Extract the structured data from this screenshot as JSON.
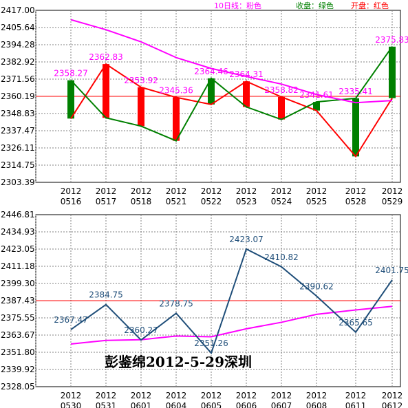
{
  "colors": {
    "ma_line": "#ff00ff",
    "close_line": "#008000",
    "open_line": "#ff0000",
    "up_bar": "#008000",
    "down_bar": "#ff0000",
    "grid": "#808080",
    "ref_line": "#ff0000",
    "top_label": "#ff00ff",
    "bottom_line": "#1f4e79",
    "bottom_label": "#1f4e79",
    "axis_text": "#000000"
  },
  "legend": [
    {
      "text": "10日线：粉色",
      "color": "#ff00ff"
    },
    {
      "text": "收盘：绿色",
      "color": "#008000"
    },
    {
      "text": "开盘：红色",
      "color": "#ff0000"
    }
  ],
  "watermark": "彭鉴绵2012-5-29深圳",
  "chart_data": [
    {
      "type": "candlestick",
      "panel": "top",
      "y_ticks": [
        "2417.00",
        "2405.64",
        "2394.28",
        "2382.92",
        "2371.56",
        "2360.19",
        "2348.83",
        "2337.47",
        "2326.11",
        "2314.75",
        "2303.39"
      ],
      "ylim": [
        2303.39,
        2417.0
      ],
      "x_labels": [
        {
          "year": "2012",
          "md": "0516"
        },
        {
          "year": "2012",
          "md": "0517"
        },
        {
          "year": "2012",
          "md": "0518"
        },
        {
          "year": "2012",
          "md": "0521"
        },
        {
          "year": "2012",
          "md": "0522"
        },
        {
          "year": "2012",
          "md": "0523"
        },
        {
          "year": "2012",
          "md": "0524"
        },
        {
          "year": "2012",
          "md": "0525"
        },
        {
          "year": "2012",
          "md": "0528"
        },
        {
          "year": "2012",
          "md": "0529"
        }
      ],
      "reference_line": 2360.19,
      "open": [
        2345.5,
        2381.5,
        2366.2,
        2359.5,
        2354.8,
        2370.1,
        2359.8,
        2350.8,
        2320.5,
        2359.0
      ],
      "close": [
        2370.8,
        2346.0,
        2340.5,
        2330.8,
        2372.1,
        2353.2,
        2344.9,
        2356.5,
        2358.9,
        2393.0
      ],
      "ma10": [
        2410.8,
        2404.2,
        2396.2,
        2385.8,
        2378.6,
        2373.3,
        2368.3,
        2361.4,
        2356.0,
        2357.4
      ],
      "labels": [
        "2358.27",
        "2362.83",
        "2353.92",
        "2345.36",
        "2364.46",
        "2364.31",
        "2358.82",
        "2341.61",
        "2335.41",
        "2375.83"
      ]
    },
    {
      "type": "line",
      "panel": "bottom",
      "y_ticks": [
        "2446.81",
        "2434.93",
        "2423.05",
        "2411.18",
        "2399.30",
        "2387.43",
        "2375.55",
        "2363.67",
        "2351.80",
        "2339.92",
        "2328.05"
      ],
      "ylim": [
        2328.05,
        2446.81
      ],
      "x_labels": [
        {
          "year": "2012",
          "md": "0530"
        },
        {
          "year": "2012",
          "md": "0531"
        },
        {
          "year": "2012",
          "md": "0601"
        },
        {
          "year": "2012",
          "md": "0604"
        },
        {
          "year": "2012",
          "md": "0605"
        },
        {
          "year": "2012",
          "md": "0606"
        },
        {
          "year": "2012",
          "md": "0607"
        },
        {
          "year": "2012",
          "md": "0608"
        },
        {
          "year": "2012",
          "md": "0611"
        },
        {
          "year": "2012",
          "md": "0612"
        }
      ],
      "reference_line": 2387.43,
      "values": [
        2367.47,
        2384.75,
        2360.27,
        2378.75,
        2351.26,
        2423.07,
        2410.82,
        2390.62,
        2365.65,
        2401.75
      ],
      "ma_values": [
        2357.5,
        2360.0,
        2360.5,
        2363.0,
        2362.5,
        2368.0,
        2372.5,
        2378.0,
        2381.0,
        2383.5
      ],
      "labels": [
        "2367.47",
        "2384.75",
        "2360.27",
        "2378.75",
        "2351.26",
        "2423.07",
        "2410.82",
        "2390.62",
        "2365.65",
        "2401.75"
      ]
    }
  ]
}
